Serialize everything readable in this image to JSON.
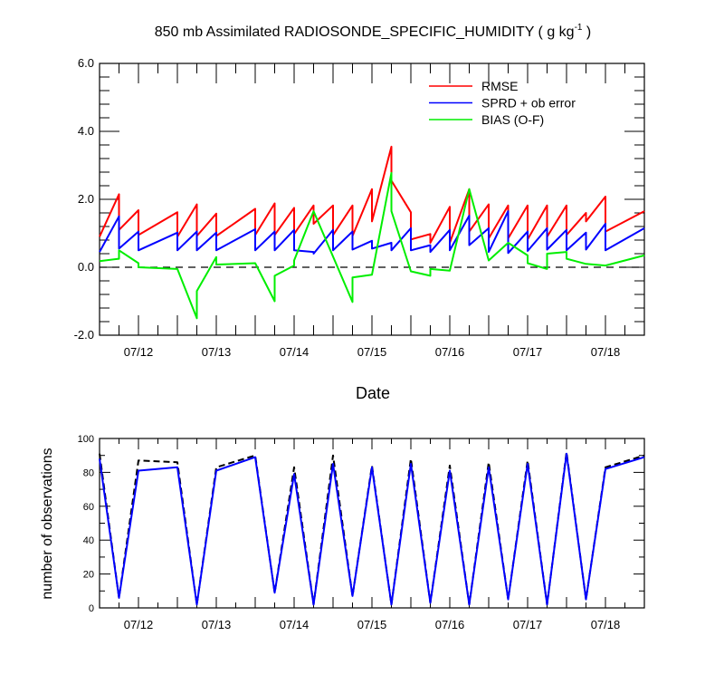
{
  "colors": {
    "rmse": "#ff0000",
    "sprd": "#0000ff",
    "bias": "#00ee00",
    "obs_assim": "#0000ff",
    "obs_total": "#000000"
  },
  "chart_data": [
    {
      "type": "line",
      "title": "850 mb Assimilated RADIOSONDE_SPECIFIC_HUMIDITY ( g kg",
      "title_superscript": "-1",
      "title_suffix": " )",
      "xlabel": "Date",
      "ylabel": "",
      "x_tick_labels": [
        "07/12",
        "07/13",
        "07/14",
        "07/15",
        "07/16",
        "07/17",
        "07/18"
      ],
      "ylim": [
        -2.0,
        6.0
      ],
      "y_ticks": [
        -2.0,
        0.0,
        2.0,
        4.0,
        6.0
      ],
      "y_tick_labels": [
        "-2.0",
        "0.0",
        "2.0",
        "4.0",
        "6.0"
      ],
      "zero_line": "dashed",
      "grid": false,
      "legend_position": "top-right",
      "series": [
        {
          "name": "RMSE",
          "color_key": "rmse",
          "points": [
            [
              "2008-07-11 12:00",
              0.9
            ],
            [
              "2008-07-11 18:00",
              2.15
            ],
            [
              "2008-07-11 18:00",
              1.1
            ],
            [
              "2008-07-12 00:00",
              1.68
            ],
            [
              "2008-07-12 00:00",
              0.95
            ],
            [
              "2008-07-12 12:00",
              1.62
            ],
            [
              "2008-07-12 12:00",
              0.9
            ],
            [
              "2008-07-12 18:00",
              1.85
            ],
            [
              "2008-07-12 18:00",
              0.92
            ],
            [
              "2008-07-13 00:00",
              1.58
            ],
            [
              "2008-07-13 00:00",
              0.92
            ],
            [
              "2008-07-13 12:00",
              1.72
            ],
            [
              "2008-07-13 12:00",
              0.95
            ],
            [
              "2008-07-13 18:00",
              1.88
            ],
            [
              "2008-07-13 18:00",
              0.95
            ],
            [
              "2008-07-14 00:00",
              1.75
            ],
            [
              "2008-07-14 00:00",
              0.98
            ],
            [
              "2008-07-14 06:00",
              1.82
            ],
            [
              "2008-07-14 06:00",
              1.28
            ],
            [
              "2008-07-14 12:00",
              1.82
            ],
            [
              "2008-07-14 12:00",
              0.95
            ],
            [
              "2008-07-14 18:00",
              1.82
            ],
            [
              "2008-07-14 18:00",
              0.92
            ],
            [
              "2008-07-15 00:00",
              2.3
            ],
            [
              "2008-07-15 00:00",
              1.35
            ],
            [
              "2008-07-15 06:00",
              3.55
            ],
            [
              "2008-07-15 06:00",
              2.55
            ],
            [
              "2008-07-15 12:00",
              1.62
            ],
            [
              "2008-07-15 12:00",
              0.82
            ],
            [
              "2008-07-15 18:00",
              0.98
            ],
            [
              "2008-07-15 18:00",
              0.72
            ],
            [
              "2008-07-16 00:00",
              1.78
            ],
            [
              "2008-07-16 00:00",
              0.72
            ],
            [
              "2008-07-16 06:00",
              2.3
            ],
            [
              "2008-07-16 06:00",
              1.05
            ],
            [
              "2008-07-16 12:00",
              1.85
            ],
            [
              "2008-07-16 12:00",
              0.85
            ],
            [
              "2008-07-16 18:00",
              1.82
            ],
            [
              "2008-07-16 18:00",
              0.85
            ],
            [
              "2008-07-17 00:00",
              1.82
            ],
            [
              "2008-07-17 00:00",
              0.82
            ],
            [
              "2008-07-17 06:00",
              1.82
            ],
            [
              "2008-07-17 06:00",
              0.9
            ],
            [
              "2008-07-17 12:00",
              1.82
            ],
            [
              "2008-07-17 12:00",
              0.95
            ],
            [
              "2008-07-17 18:00",
              1.6
            ],
            [
              "2008-07-17 18:00",
              1.35
            ],
            [
              "2008-07-18 00:00",
              2.08
            ],
            [
              "2008-07-18 00:00",
              1.05
            ],
            [
              "2008-07-18 12:00",
              1.65
            ]
          ]
        },
        {
          "name": "SPRD + ob error",
          "color_key": "sprd",
          "points": [
            [
              "2008-07-11 12:00",
              0.45
            ],
            [
              "2008-07-11 18:00",
              1.5
            ],
            [
              "2008-07-11 18:00",
              0.55
            ],
            [
              "2008-07-12 00:00",
              1.05
            ],
            [
              "2008-07-12 00:00",
              0.5
            ],
            [
              "2008-07-12 12:00",
              1.02
            ],
            [
              "2008-07-12 12:00",
              0.5
            ],
            [
              "2008-07-12 18:00",
              1.05
            ],
            [
              "2008-07-12 18:00",
              0.5
            ],
            [
              "2008-07-13 00:00",
              1.02
            ],
            [
              "2008-07-13 00:00",
              0.5
            ],
            [
              "2008-07-13 12:00",
              1.12
            ],
            [
              "2008-07-13 12:00",
              0.5
            ],
            [
              "2008-07-13 18:00",
              1.05
            ],
            [
              "2008-07-13 18:00",
              0.5
            ],
            [
              "2008-07-14 00:00",
              1.1
            ],
            [
              "2008-07-14 00:00",
              0.5
            ],
            [
              "2008-07-14 06:00",
              0.45
            ],
            [
              "2008-07-14 06:00",
              0.4
            ],
            [
              "2008-07-14 12:00",
              1.1
            ],
            [
              "2008-07-14 12:00",
              0.5
            ],
            [
              "2008-07-14 18:00",
              1.05
            ],
            [
              "2008-07-14 18:00",
              0.52
            ],
            [
              "2008-07-15 00:00",
              0.78
            ],
            [
              "2008-07-15 00:00",
              0.55
            ],
            [
              "2008-07-15 06:00",
              0.72
            ],
            [
              "2008-07-15 06:00",
              0.5
            ],
            [
              "2008-07-15 12:00",
              1.15
            ],
            [
              "2008-07-15 12:00",
              0.5
            ],
            [
              "2008-07-15 18:00",
              0.65
            ],
            [
              "2008-07-15 18:00",
              0.45
            ],
            [
              "2008-07-16 00:00",
              1.1
            ],
            [
              "2008-07-16 00:00",
              0.5
            ],
            [
              "2008-07-16 06:00",
              1.52
            ],
            [
              "2008-07-16 06:00",
              0.65
            ],
            [
              "2008-07-16 12:00",
              1.15
            ],
            [
              "2008-07-16 12:00",
              0.45
            ],
            [
              "2008-07-16 18:00",
              1.65
            ],
            [
              "2008-07-16 18:00",
              0.42
            ],
            [
              "2008-07-17 00:00",
              1.05
            ],
            [
              "2008-07-17 00:00",
              0.48
            ],
            [
              "2008-07-17 06:00",
              1.15
            ],
            [
              "2008-07-17 06:00",
              0.52
            ],
            [
              "2008-07-17 12:00",
              1.1
            ],
            [
              "2008-07-17 12:00",
              0.5
            ],
            [
              "2008-07-17 18:00",
              1.02
            ],
            [
              "2008-07-17 18:00",
              0.52
            ],
            [
              "2008-07-18 00:00",
              1.28
            ],
            [
              "2008-07-18 00:00",
              0.5
            ],
            [
              "2008-07-18 12:00",
              1.15
            ]
          ]
        },
        {
          "name": "BIAS (O-F)",
          "color_key": "bias",
          "points": [
            [
              "2008-07-11 12:00",
              0.18
            ],
            [
              "2008-07-11 18:00",
              0.25
            ],
            [
              "2008-07-11 18:00",
              0.5
            ],
            [
              "2008-07-12 00:00",
              0.12
            ],
            [
              "2008-07-12 00:00",
              0.0
            ],
            [
              "2008-07-12 12:00",
              -0.05
            ],
            [
              "2008-07-12 18:00",
              -1.5
            ],
            [
              "2008-07-12 18:00",
              -0.7
            ],
            [
              "2008-07-13 00:00",
              0.3
            ],
            [
              "2008-07-13 00:00",
              0.08
            ],
            [
              "2008-07-13 12:00",
              0.12
            ],
            [
              "2008-07-13 18:00",
              -1.0
            ],
            [
              "2008-07-13 18:00",
              -0.25
            ],
            [
              "2008-07-14 00:00",
              0.05
            ],
            [
              "2008-07-14 00:00",
              0.2
            ],
            [
              "2008-07-14 06:00",
              1.65
            ],
            [
              "2008-07-14 18:00",
              -1.02
            ],
            [
              "2008-07-14 18:00",
              -0.3
            ],
            [
              "2008-07-15 00:00",
              -0.22
            ],
            [
              "2008-07-15 06:00",
              2.78
            ],
            [
              "2008-07-15 06:00",
              1.65
            ],
            [
              "2008-07-15 12:00",
              -0.12
            ],
            [
              "2008-07-15 18:00",
              -0.25
            ],
            [
              "2008-07-15 18:00",
              -0.05
            ],
            [
              "2008-07-16 00:00",
              -0.1
            ],
            [
              "2008-07-16 06:00",
              2.3
            ],
            [
              "2008-07-16 12:00",
              0.2
            ],
            [
              "2008-07-16 18:00",
              0.72
            ],
            [
              "2008-07-17 00:00",
              0.35
            ],
            [
              "2008-07-17 00:00",
              0.12
            ],
            [
              "2008-07-17 06:00",
              -0.05
            ],
            [
              "2008-07-17 06:00",
              0.4
            ],
            [
              "2008-07-17 12:00",
              0.45
            ],
            [
              "2008-07-17 12:00",
              0.25
            ],
            [
              "2008-07-17 18:00",
              0.1
            ],
            [
              "2008-07-18 00:00",
              0.05
            ],
            [
              "2008-07-18 12:00",
              0.35
            ]
          ]
        }
      ]
    },
    {
      "type": "line",
      "title": "",
      "xlabel": "",
      "ylabel": "number of observations",
      "x_tick_labels": [
        "07/12",
        "07/13",
        "07/14",
        "07/15",
        "07/16",
        "07/17",
        "07/18"
      ],
      "ylim": [
        0,
        100
      ],
      "y_ticks": [
        0,
        20,
        40,
        60,
        80,
        100
      ],
      "y_tick_labels": [
        "0",
        "20",
        "40",
        "60",
        "80",
        "100"
      ],
      "grid": false,
      "series": [
        {
          "color_key": "obs_total",
          "style": "dashed",
          "points": [
            [
              "2008-07-11 12:00",
              91
            ],
            [
              "2008-07-11 18:00",
              6
            ],
            [
              "2008-07-12 00:00",
              87
            ],
            [
              "2008-07-12 12:00",
              86
            ],
            [
              "2008-07-12 18:00",
              2
            ],
            [
              "2008-07-13 00:00",
              83
            ],
            [
              "2008-07-13 12:00",
              90
            ],
            [
              "2008-07-13 18:00",
              9
            ],
            [
              "2008-07-14 00:00",
              83
            ],
            [
              "2008-07-14 06:00",
              2
            ],
            [
              "2008-07-14 12:00",
              90
            ],
            [
              "2008-07-14 18:00",
              7
            ],
            [
              "2008-07-15 00:00",
              84
            ],
            [
              "2008-07-15 06:00",
              2
            ],
            [
              "2008-07-15 12:00",
              88
            ],
            [
              "2008-07-15 18:00",
              3
            ],
            [
              "2008-07-16 00:00",
              84
            ],
            [
              "2008-07-16 06:00",
              2
            ],
            [
              "2008-07-16 12:00",
              86
            ],
            [
              "2008-07-16 18:00",
              5
            ],
            [
              "2008-07-17 00:00",
              87
            ],
            [
              "2008-07-17 06:00",
              2
            ],
            [
              "2008-07-17 12:00",
              92
            ],
            [
              "2008-07-17 18:00",
              5
            ],
            [
              "2008-07-18 00:00",
              83
            ],
            [
              "2008-07-18 12:00",
              90
            ]
          ]
        },
        {
          "color_key": "obs_assim",
          "style": "solid",
          "points": [
            [
              "2008-07-11 12:00",
              88
            ],
            [
              "2008-07-11 18:00",
              6
            ],
            [
              "2008-07-12 00:00",
              81
            ],
            [
              "2008-07-12 12:00",
              83
            ],
            [
              "2008-07-12 18:00",
              2
            ],
            [
              "2008-07-13 00:00",
              81
            ],
            [
              "2008-07-13 12:00",
              89
            ],
            [
              "2008-07-13 18:00",
              9
            ],
            [
              "2008-07-14 00:00",
              79
            ],
            [
              "2008-07-14 06:00",
              2
            ],
            [
              "2008-07-14 12:00",
              85
            ],
            [
              "2008-07-14 18:00",
              7
            ],
            [
              "2008-07-15 00:00",
              83
            ],
            [
              "2008-07-15 06:00",
              2
            ],
            [
              "2008-07-15 12:00",
              85
            ],
            [
              "2008-07-15 18:00",
              3
            ],
            [
              "2008-07-16 00:00",
              81
            ],
            [
              "2008-07-16 06:00",
              2
            ],
            [
              "2008-07-16 12:00",
              83
            ],
            [
              "2008-07-16 18:00",
              5
            ],
            [
              "2008-07-17 00:00",
              85
            ],
            [
              "2008-07-17 06:00",
              2
            ],
            [
              "2008-07-17 12:00",
              91
            ],
            [
              "2008-07-17 18:00",
              5
            ],
            [
              "2008-07-18 00:00",
              82
            ],
            [
              "2008-07-18 12:00",
              89
            ]
          ]
        }
      ]
    }
  ]
}
